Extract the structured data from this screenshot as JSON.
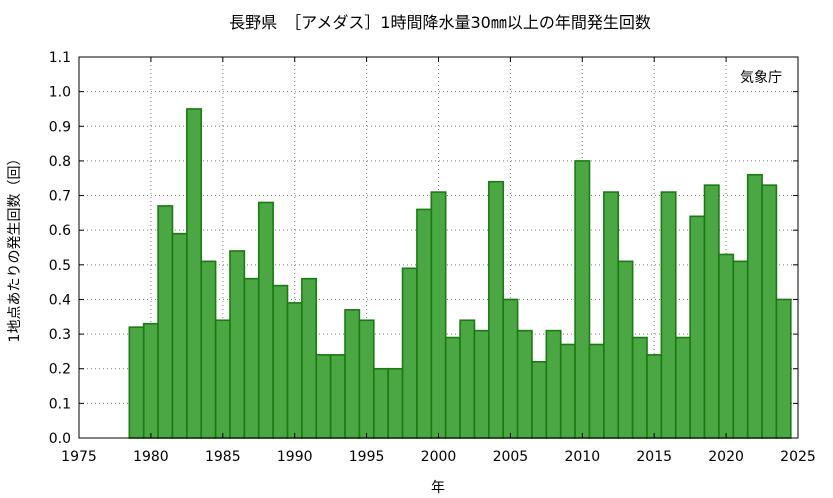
{
  "chart_data": {
    "type": "bar",
    "title": "長野県　［アメダス］1時間降水量30㎜以上の年間発生回数",
    "xlabel": "年",
    "ylabel": "1地点あたりの発生回数（回）",
    "source_label": "気象庁",
    "xlim": [
      1975,
      2025
    ],
    "ylim": [
      0,
      1.1
    ],
    "xticks": [
      1975,
      1980,
      1985,
      1990,
      1995,
      2000,
      2005,
      2010,
      2015,
      2020,
      2025
    ],
    "yticks": [
      0.0,
      0.1,
      0.2,
      0.3,
      0.4,
      0.5,
      0.6,
      0.7,
      0.8,
      0.9,
      1.0,
      1.1
    ],
    "ytick_labels": [
      "0.0",
      "0.1",
      "0.2",
      "0.3",
      "0.4",
      "0.5",
      "0.6",
      "0.7",
      "0.8",
      "0.9",
      "1.0",
      "1.1"
    ],
    "grid": true,
    "bar_fill": "#4aa743",
    "bar_edge": "#1b7a12",
    "years": [
      1979,
      1980,
      1981,
      1982,
      1983,
      1984,
      1985,
      1986,
      1987,
      1988,
      1989,
      1990,
      1991,
      1992,
      1993,
      1994,
      1995,
      1996,
      1997,
      1998,
      1999,
      2000,
      2001,
      2002,
      2003,
      2004,
      2005,
      2006,
      2007,
      2008,
      2009,
      2010,
      2011,
      2012,
      2013,
      2014,
      2015,
      2016,
      2017,
      2018,
      2019,
      2020,
      2021,
      2022,
      2023,
      2024
    ],
    "values": [
      0.32,
      0.33,
      0.67,
      0.59,
      0.95,
      0.51,
      0.34,
      0.54,
      0.46,
      0.68,
      0.44,
      0.39,
      0.46,
      0.24,
      0.24,
      0.37,
      0.34,
      0.2,
      0.2,
      0.49,
      0.66,
      0.71,
      0.29,
      0.34,
      0.31,
      0.74,
      0.4,
      0.31,
      0.22,
      0.31,
      0.27,
      0.8,
      0.27,
      0.71,
      0.51,
      0.29,
      0.24,
      0.71,
      0.29,
      0.64,
      0.73,
      0.53,
      0.51,
      0.76,
      0.73,
      0.4
    ]
  }
}
